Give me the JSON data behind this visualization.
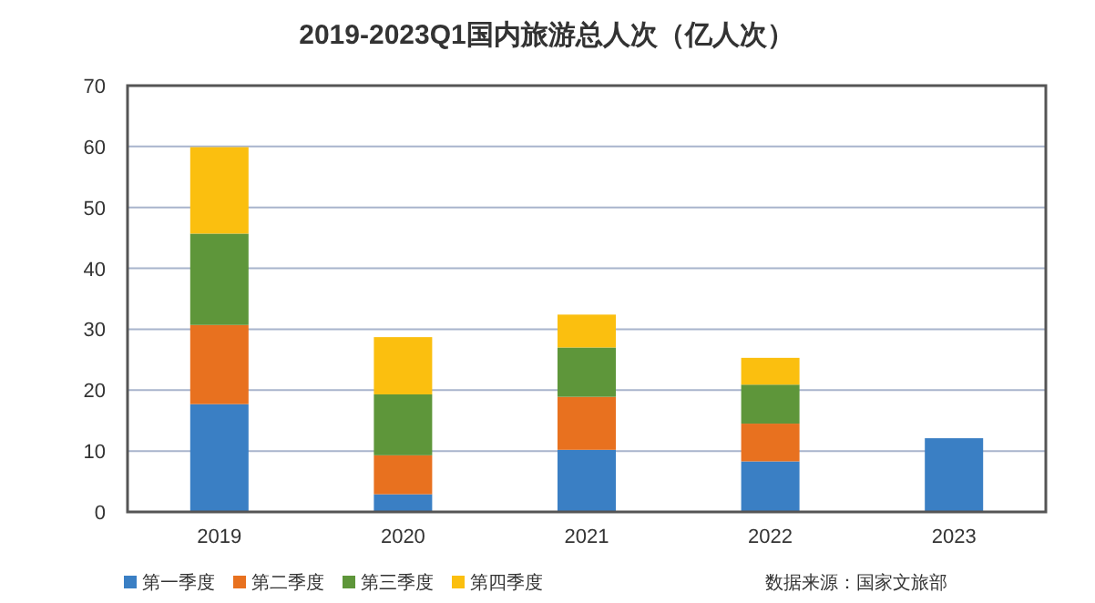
{
  "chart_data": {
    "type": "bar",
    "title": "2019-2023Q1国内旅游总人次（亿人次）",
    "stacked": true,
    "categories": [
      "2019",
      "2020",
      "2021",
      "2022",
      "2023"
    ],
    "series": [
      {
        "name": "第一季度",
        "color": "#3a7fc4",
        "values": [
          17.7,
          2.9,
          10.2,
          8.3,
          12.1
        ]
      },
      {
        "name": "第二季度",
        "color": "#e8711f",
        "values": [
          13.0,
          6.4,
          8.7,
          6.2,
          null
        ]
      },
      {
        "name": "第三季度",
        "color": "#5e963a",
        "values": [
          15.0,
          10.0,
          8.1,
          6.4,
          null
        ]
      },
      {
        "name": "第四季度",
        "color": "#fbbf0f",
        "values": [
          14.2,
          9.4,
          5.4,
          4.4,
          null
        ]
      }
    ],
    "ylim": [
      0,
      70
    ],
    "yticks": [
      0,
      10,
      20,
      30,
      40,
      50,
      60,
      70
    ],
    "grid": "y",
    "legend": "bottom left",
    "annotations": [
      "数据来源：国家文旅部"
    ]
  }
}
